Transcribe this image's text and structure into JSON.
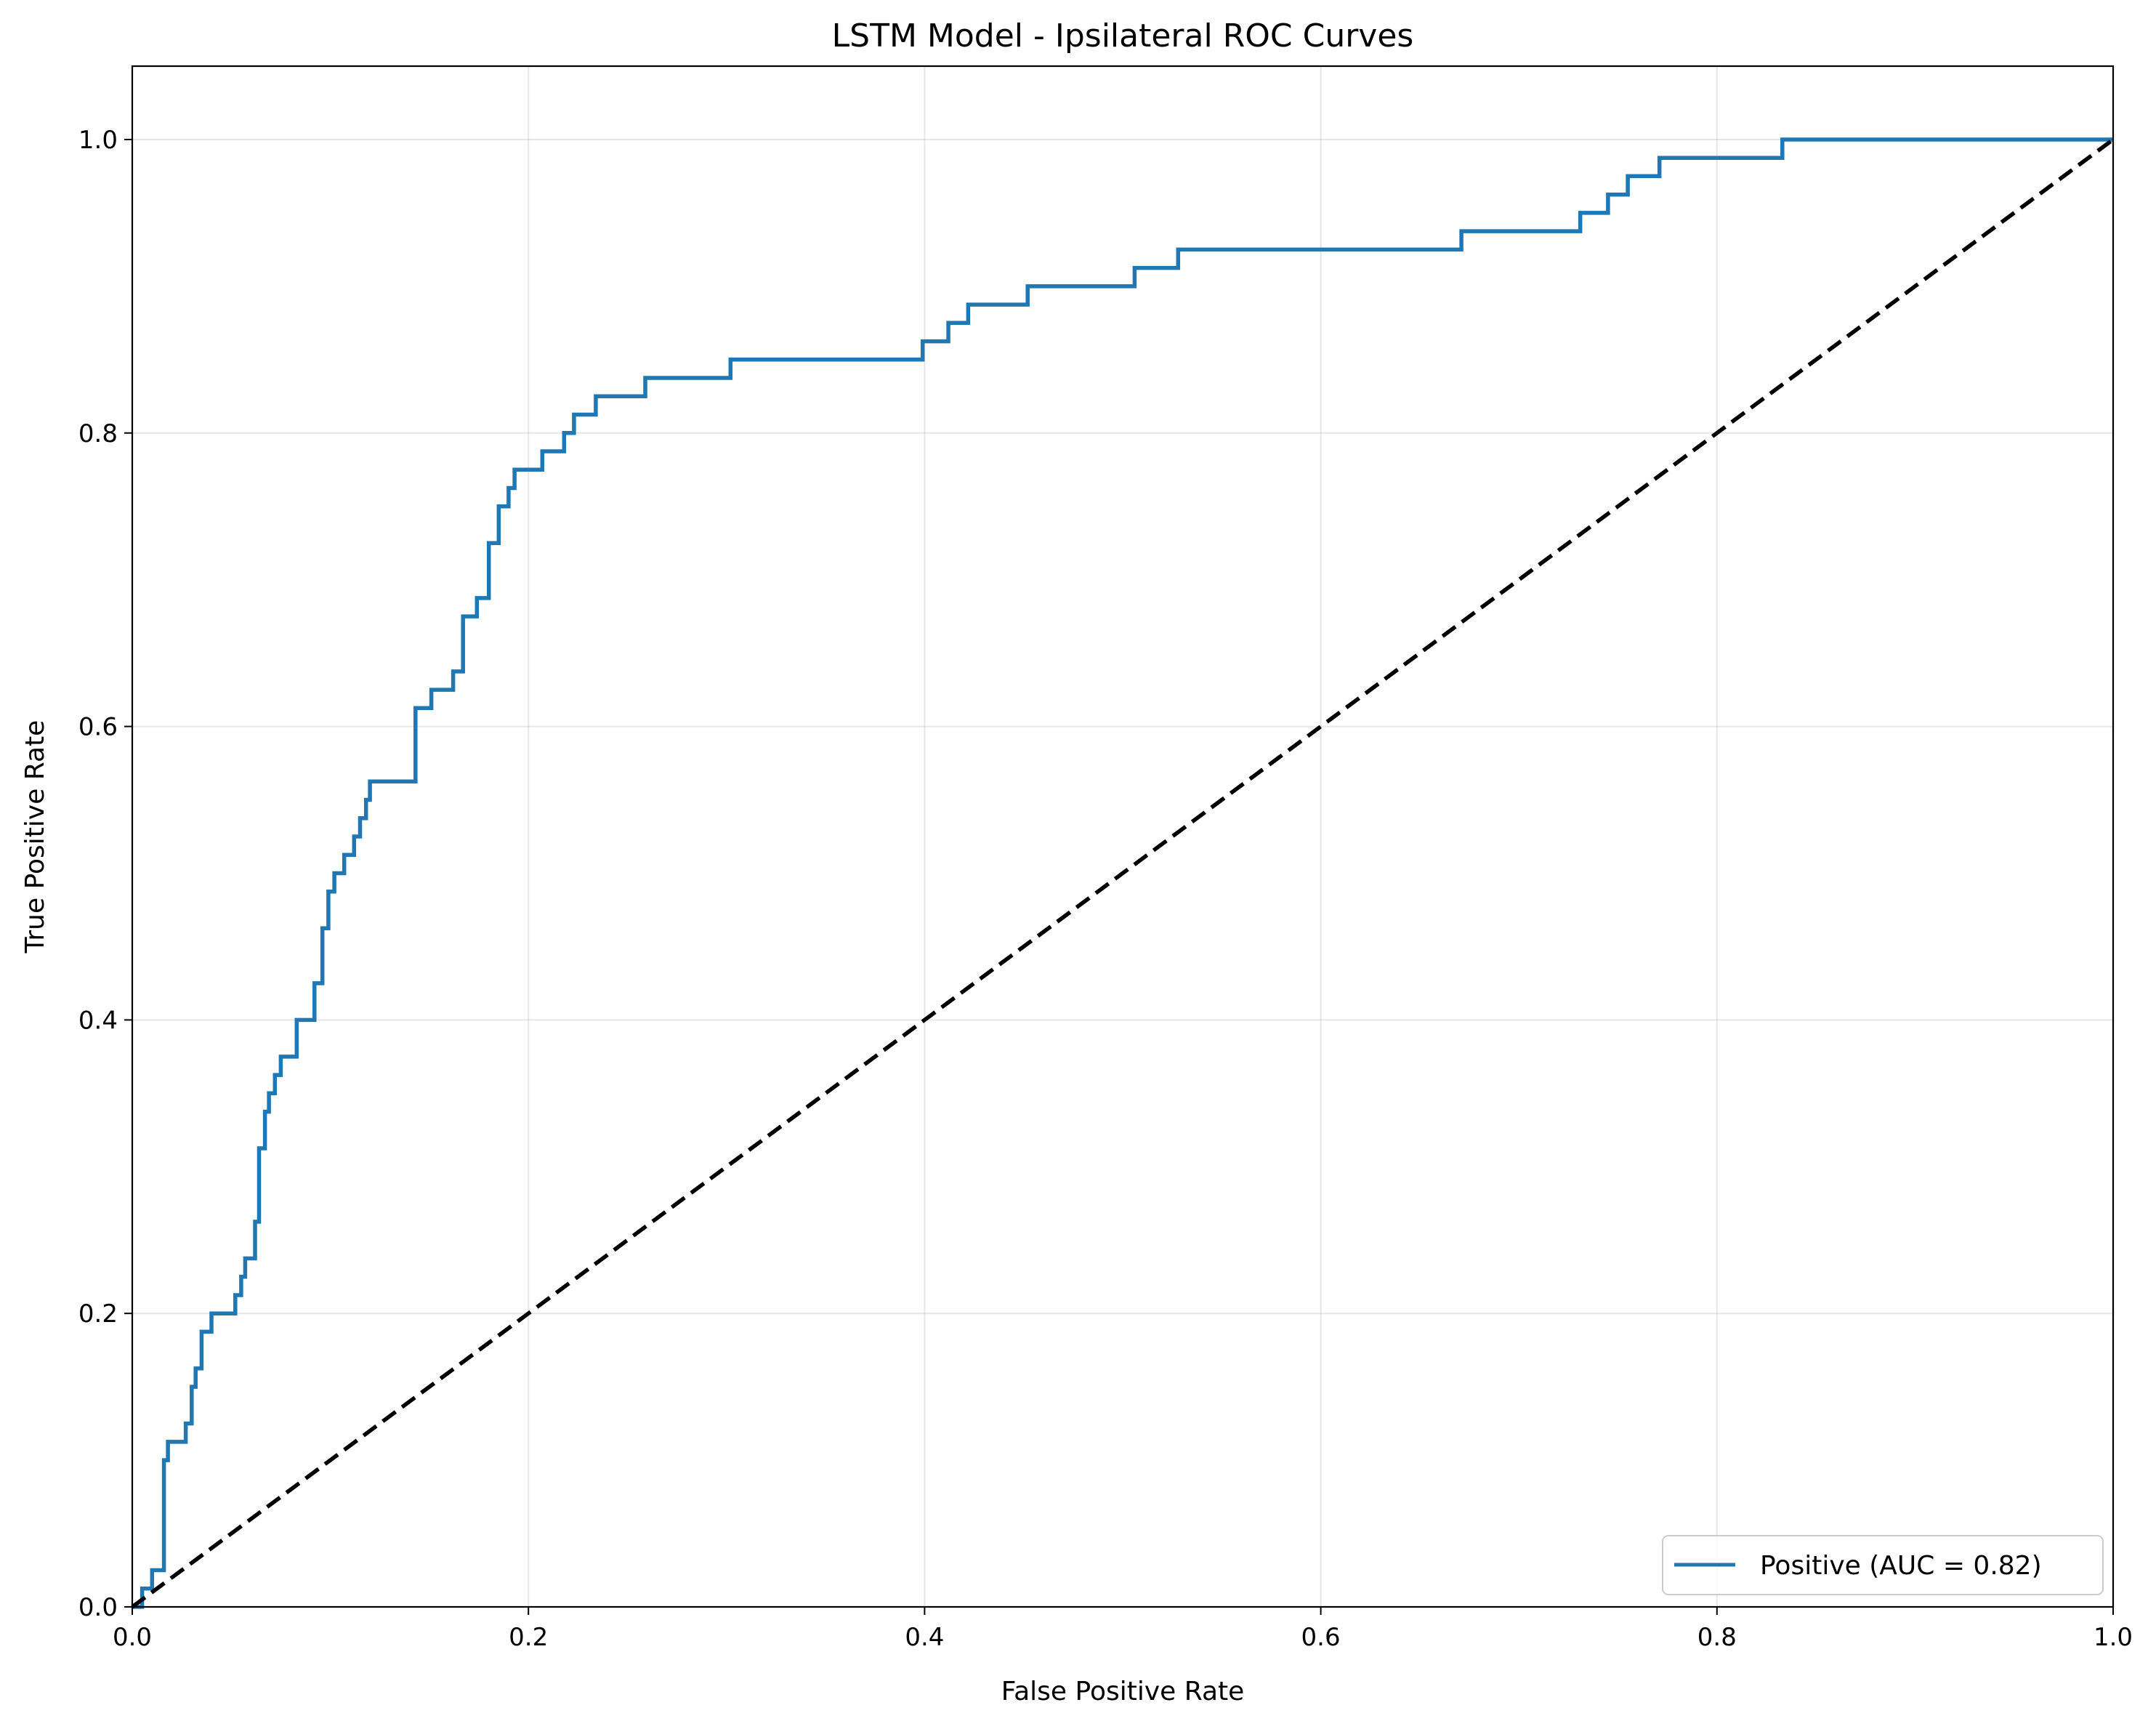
{
  "chart_data": {
    "type": "line",
    "title": "LSTM Model - Ipsilateral ROC Curves",
    "xlabel": "False Positive Rate",
    "ylabel": "True Positive Rate",
    "xlim": [
      0.0,
      1.0
    ],
    "ylim": [
      0.0,
      1.05
    ],
    "xticks": [
      "0.0",
      "0.2",
      "0.4",
      "0.6",
      "0.8",
      "1.0"
    ],
    "yticks": [
      "0.0",
      "0.2",
      "0.4",
      "0.6",
      "0.8",
      "1.0"
    ],
    "grid": true,
    "legend_position": "lower-right",
    "series": [
      {
        "name": "Positive (AUC = 0.82)",
        "color": "#1f77b4",
        "style": "step",
        "points": [
          [
            0.0,
            0.0
          ],
          [
            0.005,
            0.0
          ],
          [
            0.005,
            0.0125
          ],
          [
            0.01,
            0.0125
          ],
          [
            0.01,
            0.025
          ],
          [
            0.016,
            0.025
          ],
          [
            0.016,
            0.1
          ],
          [
            0.018,
            0.1
          ],
          [
            0.018,
            0.1125
          ],
          [
            0.027,
            0.1125
          ],
          [
            0.027,
            0.125
          ],
          [
            0.03,
            0.125
          ],
          [
            0.03,
            0.15
          ],
          [
            0.032,
            0.15
          ],
          [
            0.032,
            0.1625
          ],
          [
            0.035,
            0.1625
          ],
          [
            0.035,
            0.1875
          ],
          [
            0.04,
            0.1875
          ],
          [
            0.04,
            0.2
          ],
          [
            0.052,
            0.2
          ],
          [
            0.052,
            0.2125
          ],
          [
            0.055,
            0.2125
          ],
          [
            0.055,
            0.225
          ],
          [
            0.057,
            0.225
          ],
          [
            0.057,
            0.2375
          ],
          [
            0.062,
            0.2375
          ],
          [
            0.062,
            0.2625
          ],
          [
            0.064,
            0.2625
          ],
          [
            0.064,
            0.3125
          ],
          [
            0.067,
            0.3125
          ],
          [
            0.067,
            0.3375
          ],
          [
            0.069,
            0.3375
          ],
          [
            0.069,
            0.35
          ],
          [
            0.072,
            0.35
          ],
          [
            0.072,
            0.3625
          ],
          [
            0.075,
            0.3625
          ],
          [
            0.075,
            0.375
          ],
          [
            0.083,
            0.375
          ],
          [
            0.083,
            0.4
          ],
          [
            0.092,
            0.4
          ],
          [
            0.092,
            0.425
          ],
          [
            0.096,
            0.425
          ],
          [
            0.096,
            0.4625
          ],
          [
            0.099,
            0.4625
          ],
          [
            0.099,
            0.4875
          ],
          [
            0.102,
            0.4875
          ],
          [
            0.102,
            0.5
          ],
          [
            0.107,
            0.5
          ],
          [
            0.107,
            0.5125
          ],
          [
            0.112,
            0.5125
          ],
          [
            0.112,
            0.525
          ],
          [
            0.115,
            0.525
          ],
          [
            0.115,
            0.5375
          ],
          [
            0.118,
            0.5375
          ],
          [
            0.118,
            0.55
          ],
          [
            0.12,
            0.55
          ],
          [
            0.12,
            0.5625
          ],
          [
            0.143,
            0.5625
          ],
          [
            0.143,
            0.6125
          ],
          [
            0.151,
            0.6125
          ],
          [
            0.151,
            0.625
          ],
          [
            0.162,
            0.625
          ],
          [
            0.162,
            0.6375
          ],
          [
            0.167,
            0.6375
          ],
          [
            0.167,
            0.675
          ],
          [
            0.174,
            0.675
          ],
          [
            0.174,
            0.6875
          ],
          [
            0.18,
            0.6875
          ],
          [
            0.18,
            0.725
          ],
          [
            0.185,
            0.725
          ],
          [
            0.185,
            0.75
          ],
          [
            0.19,
            0.75
          ],
          [
            0.19,
            0.7625
          ],
          [
            0.193,
            0.7625
          ],
          [
            0.193,
            0.775
          ],
          [
            0.207,
            0.775
          ],
          [
            0.207,
            0.7875
          ],
          [
            0.218,
            0.7875
          ],
          [
            0.218,
            0.8
          ],
          [
            0.223,
            0.8
          ],
          [
            0.223,
            0.8125
          ],
          [
            0.234,
            0.8125
          ],
          [
            0.234,
            0.825
          ],
          [
            0.259,
            0.825
          ],
          [
            0.259,
            0.8375
          ],
          [
            0.302,
            0.8375
          ],
          [
            0.302,
            0.85
          ],
          [
            0.399,
            0.85
          ],
          [
            0.399,
            0.8625
          ],
          [
            0.412,
            0.8625
          ],
          [
            0.412,
            0.875
          ],
          [
            0.422,
            0.875
          ],
          [
            0.422,
            0.8875
          ],
          [
            0.452,
            0.8875
          ],
          [
            0.452,
            0.9
          ],
          [
            0.506,
            0.9
          ],
          [
            0.506,
            0.9125
          ],
          [
            0.528,
            0.9125
          ],
          [
            0.528,
            0.925
          ],
          [
            0.671,
            0.925
          ],
          [
            0.671,
            0.9375
          ],
          [
            0.731,
            0.9375
          ],
          [
            0.731,
            0.95
          ],
          [
            0.745,
            0.95
          ],
          [
            0.745,
            0.9625
          ],
          [
            0.755,
            0.9625
          ],
          [
            0.755,
            0.975
          ],
          [
            0.771,
            0.975
          ],
          [
            0.771,
            0.9875
          ],
          [
            0.833,
            0.9875
          ],
          [
            0.833,
            1.0
          ],
          [
            1.0,
            1.0
          ]
        ]
      },
      {
        "name": "",
        "color": "#000000",
        "style": "dashed",
        "points": [
          [
            0.0,
            0.0
          ],
          [
            1.0,
            1.0
          ]
        ]
      }
    ]
  }
}
